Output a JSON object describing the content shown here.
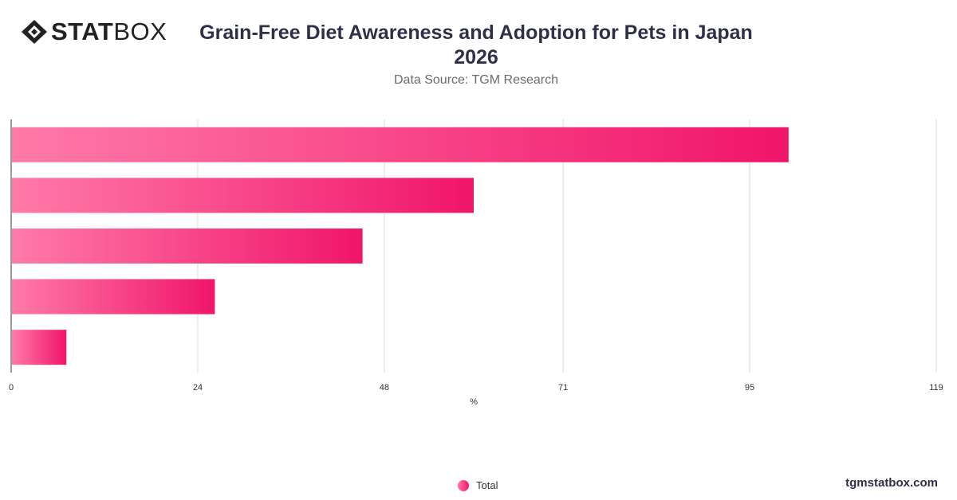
{
  "brand": {
    "logo_bold": "STAT",
    "logo_light": "BOX"
  },
  "header": {
    "title": "Grain-Free Diet Awareness and Adoption for Pets in Japan 2026",
    "subtitle": "Data Source: TGM Research"
  },
  "legend": {
    "label": "Total"
  },
  "footer": {
    "site": "tgmstatbox.com"
  },
  "colors": {
    "bar_start": "#ff7aa8",
    "bar_end": "#f0156a",
    "title": "#2d3047"
  },
  "chart_data": {
    "type": "bar",
    "orientation": "horizontal",
    "title": "Grain-Free Diet Awareness and Adoption for Pets in Japan 2026",
    "xlabel": "%",
    "ylabel": "",
    "xlim": [
      0,
      119
    ],
    "x_ticks": [
      "0",
      "24",
      "48",
      "71",
      "95",
      "119"
    ],
    "grid": true,
    "legend_position": "bottom",
    "series": [
      {
        "name": "Total",
        "values": [
          100,
          59.5,
          45.2,
          26.2,
          7.1
        ]
      }
    ]
  }
}
